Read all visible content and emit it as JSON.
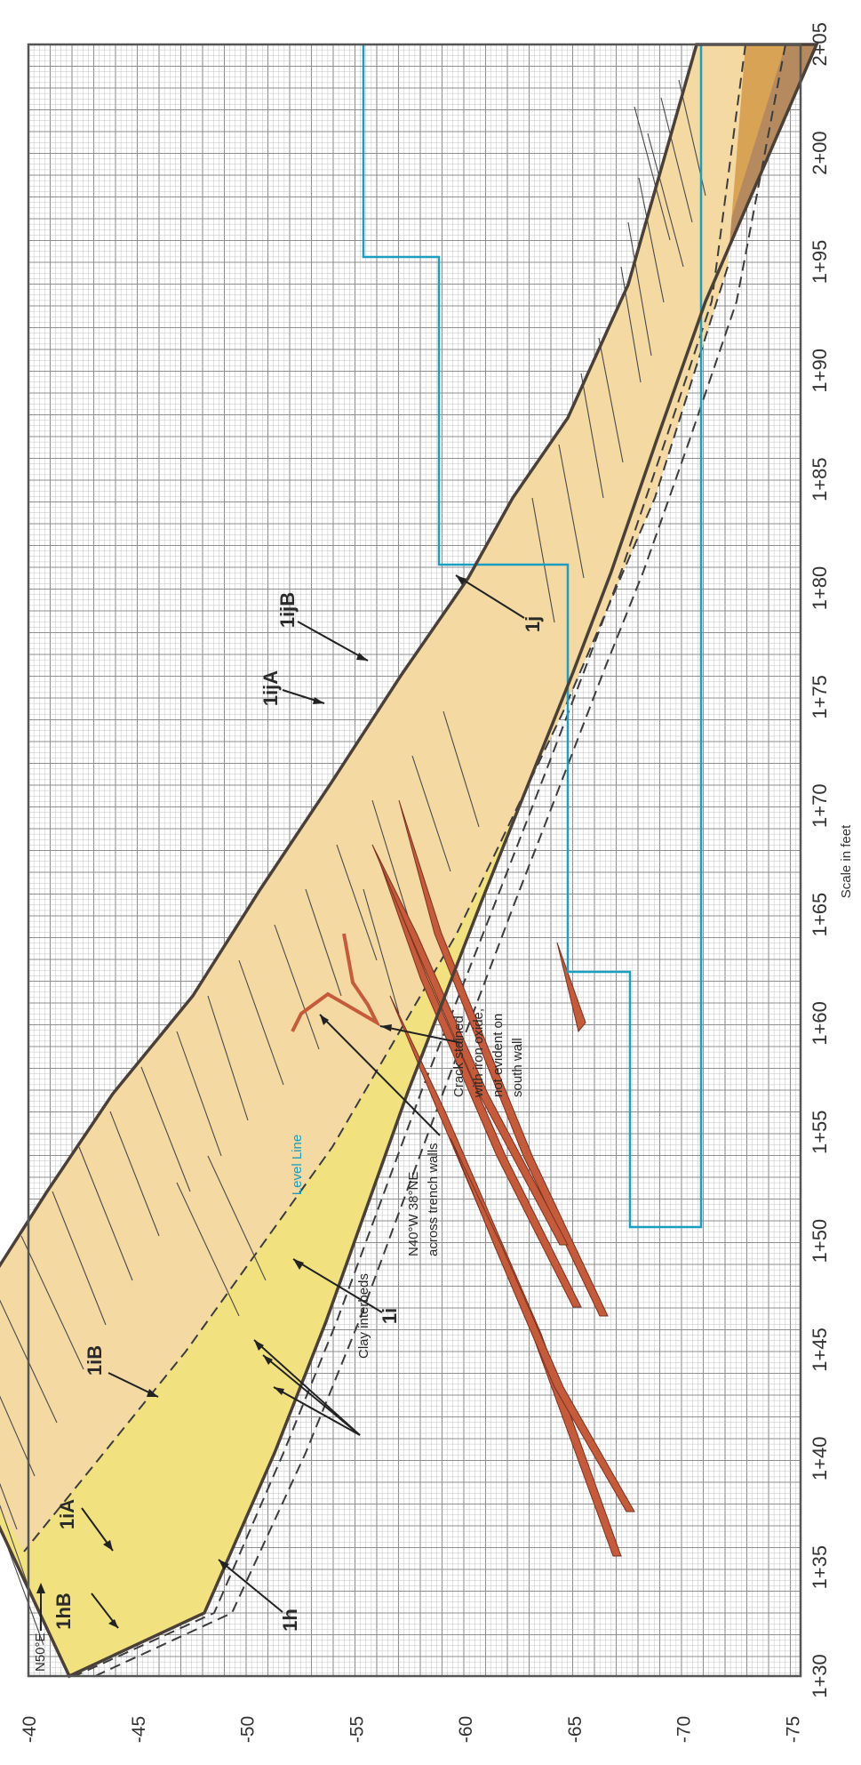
{
  "colors": {
    "paper": "#ffffff",
    "grid_minor": "#bcbcbc",
    "grid_major": "#8f8f8f",
    "unit_1iA": "#b58a5e",
    "unit_1iB": "#d9a356",
    "unit_1i": "#f2e27f",
    "unit_1h": "#f4d9a2",
    "clay_interbed": "#c65b3b",
    "level_line": "#1a9fc0",
    "outline": "#4a4038",
    "contact_dashed": "#3c3c3c"
  },
  "diagram": {
    "y_axis_ticks": [
      "-40",
      "-45",
      "-50",
      "-55",
      "-60",
      "-65",
      "-70",
      "-75"
    ],
    "x_axis_ticks": [
      "1+30",
      "1+35",
      "1+40",
      "1+45",
      "1+50",
      "1+55",
      "1+60",
      "1+65",
      "1+70",
      "1+75",
      "1+80",
      "1+85",
      "1+90",
      "1+95",
      "2+00",
      "2+05"
    ],
    "scale_label": "Scale in feet",
    "orientation_label": "N50°E"
  },
  "unit_labels": {
    "hB": "1hB",
    "iA": "1iA",
    "iB": "1iB",
    "h": "1h",
    "i": "1i",
    "ijA": "1ijA",
    "ijB": "1ijB",
    "j": "1j"
  },
  "annotations": {
    "level_line": "Level Line",
    "clay": "Clay interbeds",
    "strike_line1": "N40°W 38°NE",
    "strike_line2": "across trench walls",
    "crack_line1": "Crack stained",
    "crack_line2": "with iron oxide,",
    "crack_line3": "not evident on",
    "crack_line4": "south wall"
  }
}
